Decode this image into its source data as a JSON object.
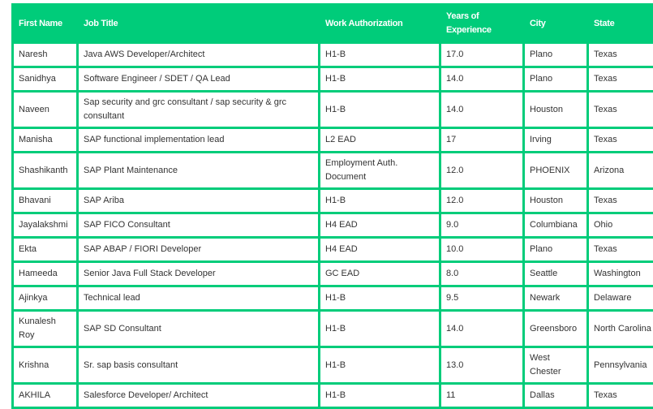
{
  "table": {
    "headers": [
      "First Name",
      "Job Title",
      "Work Authorization",
      "Years of Experience",
      "City",
      "State"
    ],
    "rows": [
      [
        "Naresh",
        "Java AWS Developer/Architect",
        "H1-B",
        "17.0",
        "Plano",
        "Texas"
      ],
      [
        "Sanidhya",
        "Software Engineer / SDET / QA Lead",
        "H1-B",
        "14.0",
        "Plano",
        "Texas"
      ],
      [
        "Naveen",
        "Sap security and grc consultant / sap security & grc consultant",
        "H1-B",
        "14.0",
        "Houston",
        "Texas"
      ],
      [
        "Manisha",
        "SAP functional implementation lead",
        "L2 EAD",
        "17",
        "Irving",
        "Texas"
      ],
      [
        "Shashikanth",
        "SAP Plant Maintenance",
        "Employment Auth. Document",
        "12.0",
        "PHOENIX",
        "Arizona"
      ],
      [
        "Bhavani",
        "SAP Ariba",
        "H1-B",
        "12.0",
        "Houston",
        "Texas"
      ],
      [
        "Jayalakshmi",
        "SAP FICO Consultant",
        "H4 EAD",
        "9.0",
        "Columbiana",
        "Ohio"
      ],
      [
        "Ekta",
        "SAP ABAP / FIORI Developer",
        "H4 EAD",
        "10.0",
        "Plano",
        "Texas"
      ],
      [
        "Hameeda",
        "Senior Java Full Stack Developer",
        "GC EAD",
        "8.0",
        "Seattle",
        "Washington"
      ],
      [
        "Ajinkya",
        "Technical lead",
        "H1-B",
        "9.5",
        "Newark",
        "Delaware"
      ],
      [
        "Kunalesh Roy",
        "SAP SD Consultant",
        "H1-B",
        "14.0",
        "Greensboro",
        "North Carolina"
      ],
      [
        "Krishna",
        "Sr. sap basis consultant",
        "H1-B",
        "13.0",
        "West Chester",
        "Pennsylvania"
      ],
      [
        "AKHILA",
        "Salesforce Developer/ Architect",
        "H1-B",
        "11",
        "Dallas",
        "Texas"
      ]
    ]
  },
  "colors": {
    "accent": "#00cc7a"
  }
}
